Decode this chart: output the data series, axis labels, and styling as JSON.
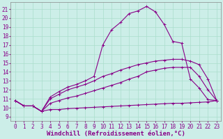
{
  "background_color": "#cceee8",
  "line_color": "#880088",
  "marker": "+",
  "marker_size": 3,
  "linewidth": 0.8,
  "xlabel": "Windchill (Refroidissement éolien,°C)",
  "xlabel_fontsize": 6.5,
  "tick_fontsize": 5.5,
  "xlim": [
    -0.5,
    23.5
  ],
  "ylim": [
    8.5,
    21.8
  ],
  "xticks": [
    0,
    1,
    2,
    3,
    4,
    5,
    6,
    7,
    8,
    9,
    10,
    11,
    12,
    13,
    14,
    15,
    16,
    17,
    18,
    19,
    20,
    21,
    22,
    23
  ],
  "yticks": [
    9,
    10,
    11,
    12,
    13,
    14,
    15,
    16,
    17,
    18,
    19,
    20,
    21
  ],
  "grid_color": "#aaddcc",
  "series": [
    {
      "x": [
        0,
        1,
        2,
        3,
        4,
        5,
        6,
        7,
        8,
        9,
        10,
        11,
        12,
        13,
        14,
        15,
        16,
        17,
        18,
        19,
        20,
        21,
        22,
        23
      ],
      "y": [
        10.8,
        10.2,
        10.2,
        9.6,
        9.8,
        9.8,
        9.9,
        9.95,
        10.0,
        10.05,
        10.1,
        10.15,
        10.2,
        10.25,
        10.3,
        10.35,
        10.4,
        10.45,
        10.5,
        10.5,
        10.55,
        10.6,
        10.65,
        10.8
      ]
    },
    {
      "x": [
        0,
        1,
        2,
        3,
        4,
        5,
        6,
        7,
        8,
        9,
        10,
        11,
        12,
        13,
        14,
        15,
        16,
        17,
        18,
        19,
        20,
        21,
        22,
        23
      ],
      "y": [
        10.8,
        10.2,
        10.2,
        9.6,
        10.5,
        10.8,
        11.1,
        11.3,
        11.6,
        11.9,
        12.2,
        12.5,
        12.8,
        13.2,
        13.5,
        14.0,
        14.2,
        14.4,
        14.5,
        14.5,
        14.5,
        13.5,
        12.0,
        10.8
      ]
    },
    {
      "x": [
        0,
        1,
        2,
        3,
        4,
        5,
        6,
        7,
        8,
        9,
        10,
        11,
        12,
        13,
        14,
        15,
        16,
        17,
        18,
        19,
        20,
        21,
        22,
        23
      ],
      "y": [
        10.8,
        10.2,
        10.2,
        9.6,
        11.0,
        11.5,
        12.0,
        12.3,
        12.6,
        13.0,
        13.5,
        13.8,
        14.2,
        14.5,
        14.8,
        15.0,
        15.2,
        15.3,
        15.4,
        15.4,
        15.2,
        14.8,
        13.2,
        10.8
      ]
    },
    {
      "x": [
        0,
        1,
        2,
        3,
        4,
        5,
        6,
        7,
        8,
        9,
        10,
        11,
        12,
        13,
        14,
        15,
        16,
        17,
        18,
        19,
        20,
        21,
        22,
        23
      ],
      "y": [
        10.8,
        10.2,
        10.2,
        9.6,
        11.2,
        11.8,
        12.3,
        12.6,
        13.0,
        13.5,
        17.0,
        18.7,
        19.5,
        20.5,
        20.8,
        21.3,
        20.7,
        19.3,
        17.4,
        17.2,
        13.2,
        12.2,
        10.9,
        10.8
      ]
    }
  ]
}
